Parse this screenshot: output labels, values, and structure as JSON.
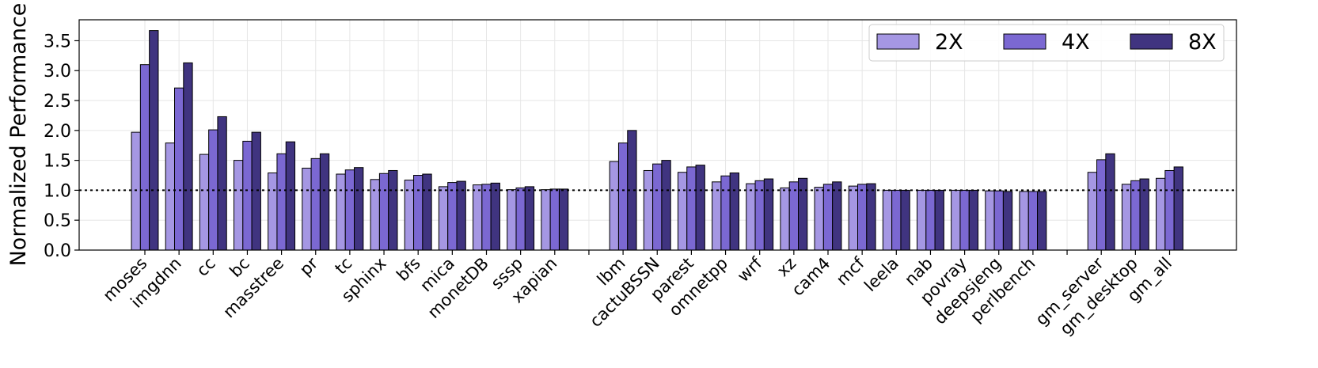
{
  "chart_data": {
    "type": "bar",
    "title": "",
    "xlabel": "",
    "ylabel": "Normalized Performance",
    "ylim": [
      0,
      3.85
    ],
    "yticks": [
      "0.0",
      "0.5",
      "1.0",
      "1.5",
      "2.0",
      "2.5",
      "3.0",
      "3.5"
    ],
    "reference_line": 1.0,
    "grid": true,
    "legend_position": "top-right",
    "categories": [
      "moses",
      "imgdnn",
      "cc",
      "bc",
      "masstree",
      "pr",
      "tc",
      "sphinx",
      "bfs",
      "mica",
      "monetDB",
      "sssp",
      "xapian",
      "",
      "lbm",
      "cactuBSSN",
      "parest",
      "omnetpp",
      "wrf",
      "xz",
      "cam4",
      "mcf",
      "leela",
      "nab",
      "povray",
      "deepsjeng",
      "perlbench",
      "",
      "gm_server",
      "gm_desktop",
      "gm_all"
    ],
    "series": [
      {
        "name": "2X",
        "color": "#a597e3",
        "values": [
          1.97,
          1.79,
          1.6,
          1.5,
          1.29,
          1.37,
          1.27,
          1.18,
          1.17,
          1.06,
          1.09,
          1.01,
          1.01,
          null,
          1.48,
          1.33,
          1.3,
          1.14,
          1.11,
          1.04,
          1.05,
          1.07,
          1.0,
          1.0,
          1.0,
          0.99,
          0.98,
          null,
          1.3,
          1.1,
          1.2
        ]
      },
      {
        "name": "4X",
        "color": "#7b68d2",
        "values": [
          3.1,
          2.71,
          2.01,
          1.82,
          1.61,
          1.53,
          1.34,
          1.28,
          1.25,
          1.13,
          1.1,
          1.04,
          1.02,
          null,
          1.79,
          1.44,
          1.39,
          1.24,
          1.16,
          1.14,
          1.1,
          1.1,
          1.0,
          1.0,
          1.0,
          0.99,
          0.98,
          null,
          1.51,
          1.16,
          1.33
        ]
      },
      {
        "name": "8X",
        "color": "#403480",
        "values": [
          3.67,
          3.13,
          2.23,
          1.97,
          1.81,
          1.61,
          1.38,
          1.33,
          1.27,
          1.15,
          1.12,
          1.06,
          1.02,
          null,
          2.0,
          1.5,
          1.42,
          1.29,
          1.19,
          1.2,
          1.14,
          1.11,
          1.0,
          1.0,
          1.0,
          0.98,
          0.98,
          null,
          1.61,
          1.19,
          1.39
        ]
      }
    ]
  }
}
